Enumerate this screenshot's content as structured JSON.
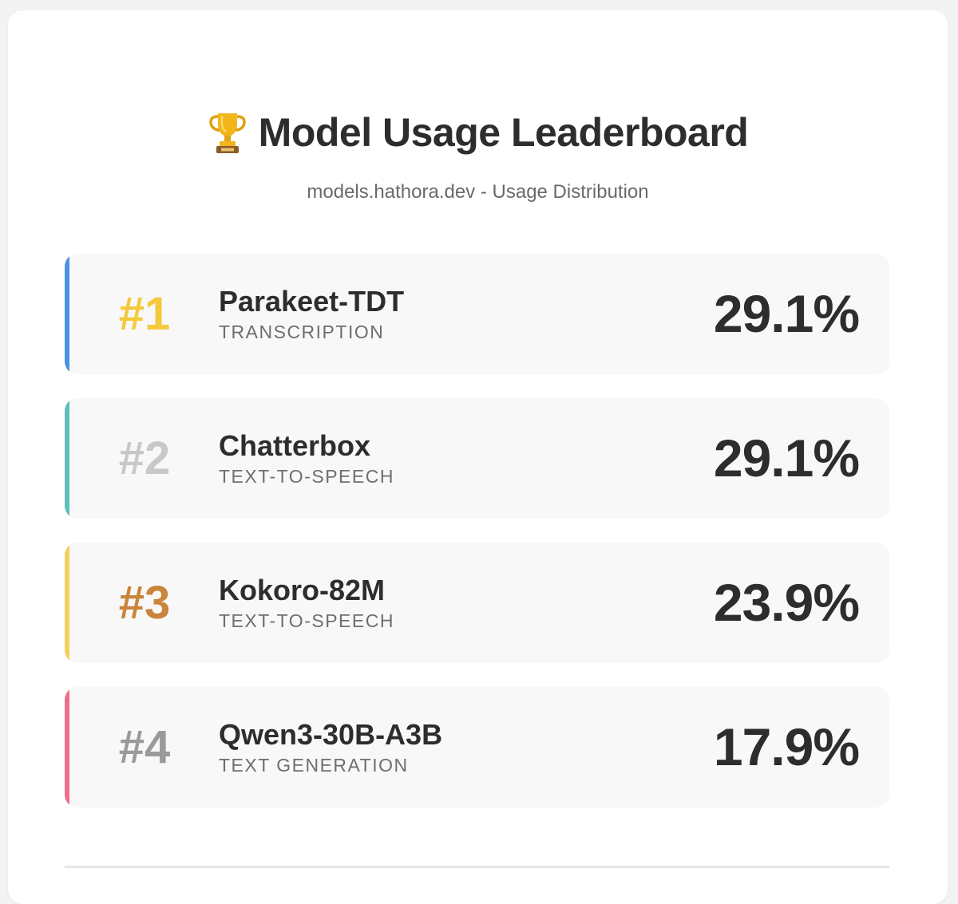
{
  "header": {
    "title": "Model Usage Leaderboard",
    "title_icon": "trophy-icon",
    "subtitle": "models.hathora.dev - Usage Distribution"
  },
  "leaderboard": [
    {
      "rank": "#1",
      "name": "Parakeet-TDT",
      "category": "TRANSCRIPTION",
      "percent": "29.1%",
      "usage_share": 29.1,
      "accent_color": "#4a90e2",
      "rank_color": "#f4c93a"
    },
    {
      "rank": "#2",
      "name": "Chatterbox",
      "category": "TEXT-TO-SPEECH",
      "percent": "29.1%",
      "usage_share": 29.1,
      "accent_color": "#5fbfba",
      "rank_color": "#c8c8c8"
    },
    {
      "rank": "#3",
      "name": "Kokoro-82M",
      "category": "TEXT-TO-SPEECH",
      "percent": "23.9%",
      "usage_share": 23.9,
      "accent_color": "#f6cf5f",
      "rank_color": "#c9853b"
    },
    {
      "rank": "#4",
      "name": "Qwen3-30B-A3B",
      "category": "TEXT GENERATION",
      "percent": "17.9%",
      "usage_share": 17.9,
      "accent_color": "#ec6f87",
      "rank_color": "#9a9a9a"
    }
  ]
}
